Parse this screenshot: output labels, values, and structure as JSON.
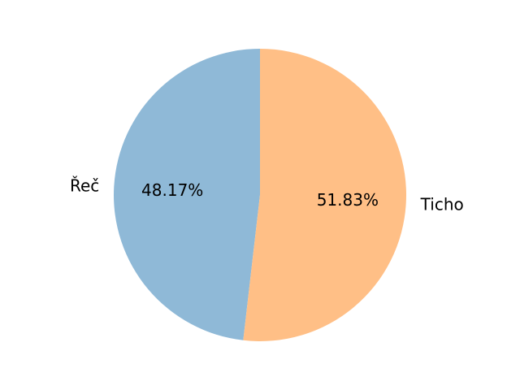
{
  "chart_data": {
    "type": "pie",
    "labels": [
      "Řeč",
      "Ticho"
    ],
    "values": [
      48.17,
      51.83
    ],
    "value_labels": [
      "48.17%",
      "51.83%"
    ],
    "colors": [
      "#8fb9d7",
      "#ffbf86"
    ],
    "start_angle_deg": 90,
    "direction": "counterclockwise"
  }
}
